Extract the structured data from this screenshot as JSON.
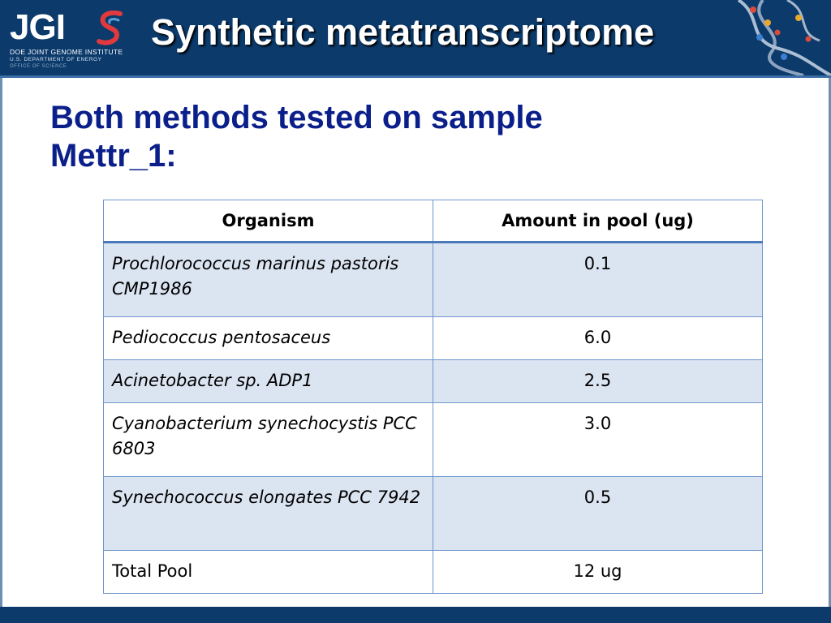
{
  "header": {
    "logo": {
      "text": "JGI",
      "subtitle_line1": "DOE JOINT GENOME INSTITUTE",
      "subtitle_line2": "U.S. DEPARTMENT OF ENERGY",
      "subtitle_line3": "OFFICE OF SCIENCE"
    },
    "title": "Synthetic metatranscriptome"
  },
  "slide": {
    "title": "Both methods tested on sample Mettr_1:"
  },
  "table": {
    "columns": [
      "Organism",
      "Amount in pool (ug)"
    ],
    "rows": [
      {
        "organism": "Prochlorococcus marinus pastoris CMP1986",
        "amount": "0.1"
      },
      {
        "organism": "Pediococcus pentosaceus",
        "amount": "6.0"
      },
      {
        "organism": "Acinetobacter sp. ADP1",
        "amount": "2.5"
      },
      {
        "organism": "Cyanobacterium synechocystis PCC 6803",
        "amount": "3.0"
      },
      {
        "organism": "Synechococcus elongates PCC 7942",
        "amount": "0.5"
      },
      {
        "organism": "Total Pool",
        "amount": "12 ug"
      }
    ]
  },
  "colors": {
    "header_bg": "#0b3a6b",
    "title_text": "#0b1f8a",
    "row_shade": "#dbe4f1",
    "table_border": "#6f97cf",
    "logo_swoosh_red": "#e03a3e",
    "logo_swoosh_blue": "#5aa0d8"
  },
  "icons": {
    "logo_swoosh": "s-swoosh-icon",
    "header_decoration": "dna-helix-icon"
  }
}
